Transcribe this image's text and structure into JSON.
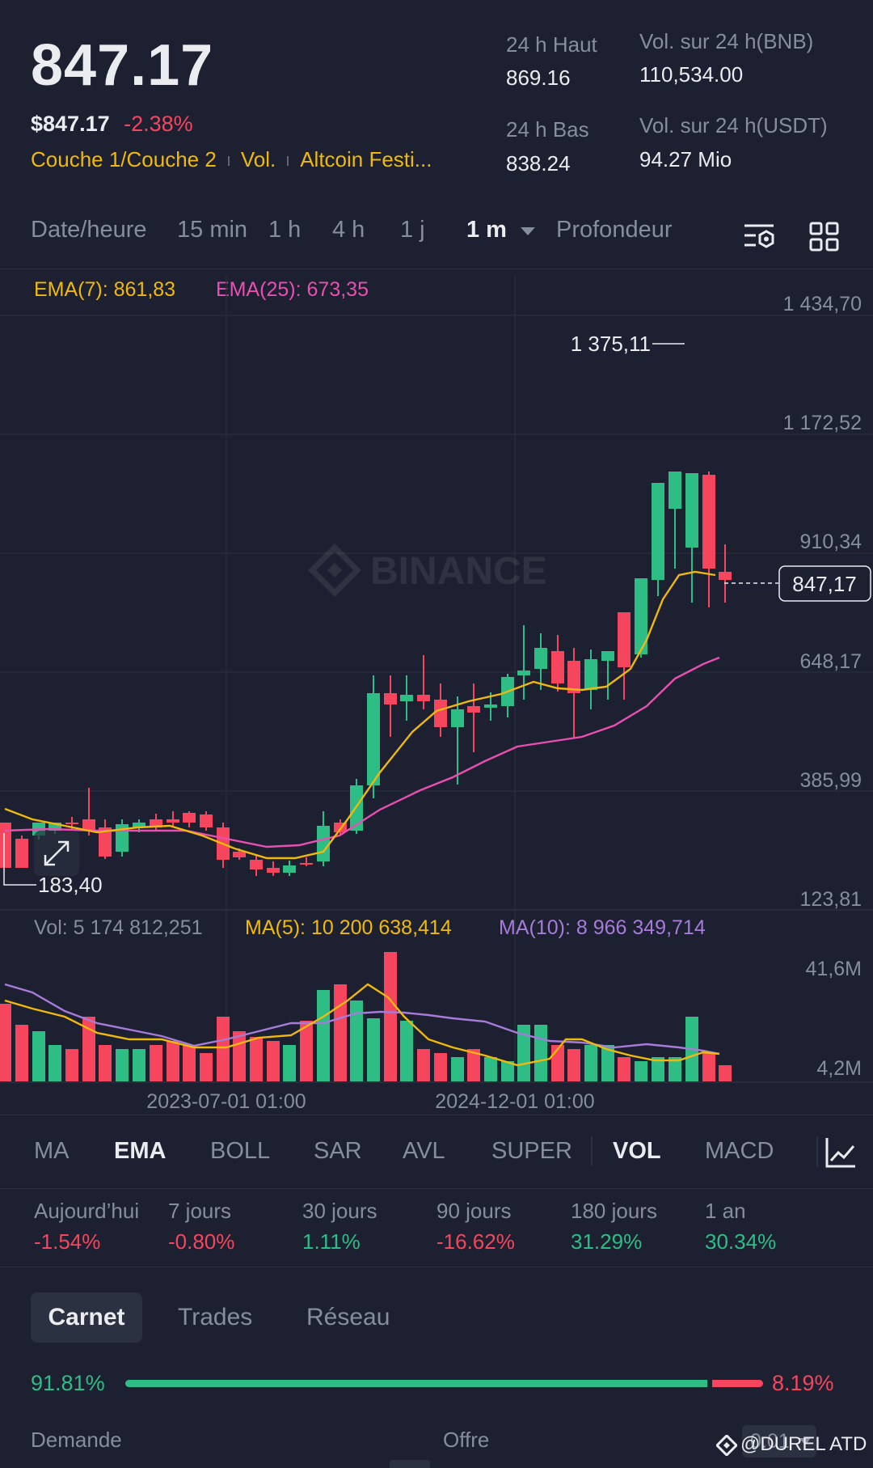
{
  "header": {
    "price": "847.17",
    "price_usd": "$847.17",
    "change_pct": "-2.38%",
    "tags": [
      "Couche 1/Couche 2",
      "Vol.",
      "Altcoin Festi..."
    ],
    "high_label": "24 h Haut",
    "high_value": "869.16",
    "low_label": "24 h Bas",
    "low_value": "838.24",
    "vol_base_label": "Vol. sur 24 h(BNB)",
    "vol_base_value": "110,534.00",
    "vol_quote_label": "Vol. sur 24 h(USDT)",
    "vol_quote_value": "94.27 Mio"
  },
  "timeframes": {
    "items": [
      "Date/heure",
      "15 min",
      "1 h",
      "4 h",
      "1 j",
      "1 m",
      "Profondeur"
    ],
    "selected": "1 m",
    "icons": [
      "chart-settings-icon",
      "grid-layout-icon"
    ]
  },
  "indicators": {
    "ema7": "EMA(7): 861,83",
    "ema25": "EMA(25): 673,35",
    "vol": "Vol: 5 174 812,251",
    "ma5": "MA(5): 10 200 638,414",
    "ma10": "MA(10): 8 966 349,714"
  },
  "chart": {
    "watermark": "BINANCE",
    "price_axis": [
      "1 434,70",
      "1 172,52",
      "910,34",
      "648,17",
      "385,99",
      "123,81"
    ],
    "current_price": "847,17",
    "high_marker": "1 375,11",
    "low_marker": "183,40",
    "volume_axis": [
      "41,6M",
      "4,2M"
    ],
    "x_axis": [
      "2023-07-01 01:00",
      "2024-12-01 01:00"
    ],
    "colors": {
      "up": "#2ebd85",
      "down": "#f6465d",
      "ema7": "#f0b90b",
      "ema25": "#e84fb1",
      "ma10": "#a77bd9"
    }
  },
  "indicator_tabs": {
    "items": [
      "MA",
      "EMA",
      "BOLL",
      "SAR",
      "AVL",
      "SUPER",
      "VOL",
      "MACD"
    ],
    "active": [
      "EMA",
      "VOL"
    ]
  },
  "performance": [
    {
      "label": "Aujourd’hui",
      "value": "-1.54%"
    },
    {
      "label": "7 jours",
      "value": "-0.80%"
    },
    {
      "label": "30 jours",
      "value": "1.11%"
    },
    {
      "label": "90 jours",
      "value": "-16.62%"
    },
    {
      "label": "180 jours",
      "value": "31.29%"
    },
    {
      "label": "1 an",
      "value": "30.34%"
    }
  ],
  "orderbook": {
    "tabs": [
      "Carnet",
      "Trades",
      "Réseau"
    ],
    "bid_pct": "91.81%",
    "ask_pct": "8.19%",
    "bid_label": "Demande",
    "ask_label": "Offre",
    "precision": "0.01",
    "watermark_credit": "@DUREL ATD"
  }
}
